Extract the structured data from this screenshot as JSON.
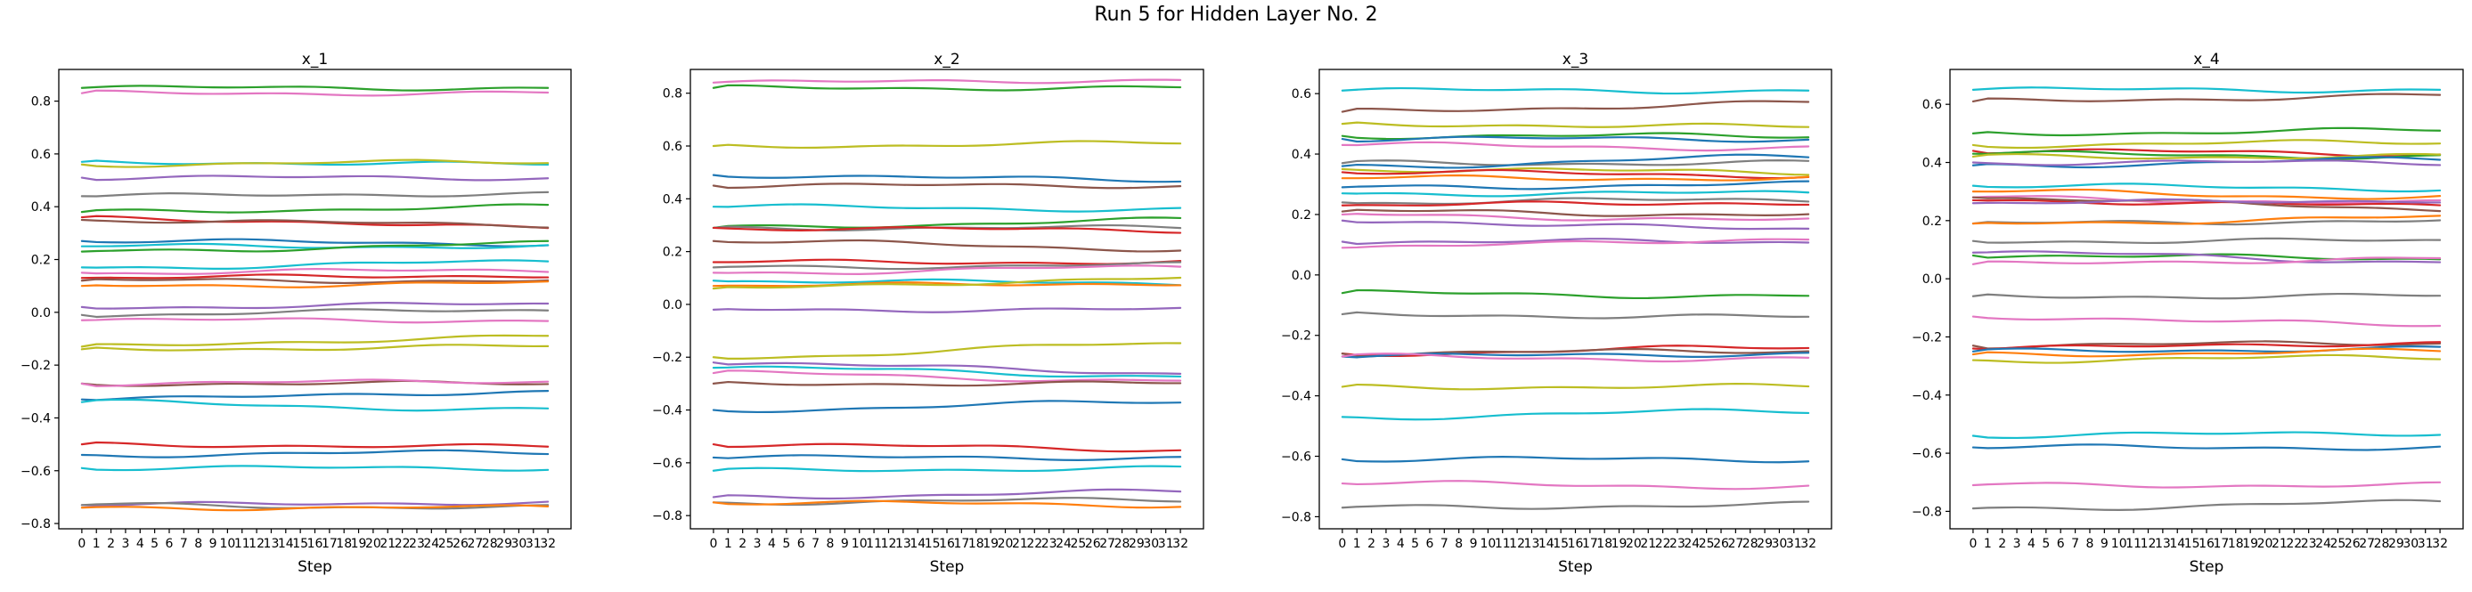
{
  "figure": {
    "title": "Run 5 for Hidden Layer No. 2"
  },
  "chart_data": [
    {
      "type": "line",
      "title": "x_1",
      "xlabel": "Step",
      "ylabel": "",
      "x": [
        0,
        1,
        2,
        3,
        4,
        5,
        6,
        7,
        8,
        9,
        10,
        11,
        12,
        13,
        14,
        15,
        16,
        17,
        18,
        19,
        20,
        21,
        22,
        23,
        24,
        25,
        26,
        27,
        28,
        29,
        30,
        31,
        32
      ],
      "xticks": [
        "0",
        "1",
        "2",
        "3",
        "4",
        "5",
        "6",
        "7",
        "8",
        "9",
        "10",
        "11",
        "12",
        "13",
        "14",
        "15",
        "16",
        "17",
        "18",
        "19",
        "20",
        "21",
        "22",
        "23",
        "24",
        "25",
        "26",
        "27",
        "28",
        "29",
        "30",
        "31",
        "32"
      ],
      "ylim": [
        -0.82,
        0.92
      ],
      "yticks": [
        -0.8,
        -0.6,
        -0.4,
        -0.2,
        0.0,
        0.2,
        0.4,
        0.6,
        0.8
      ],
      "ytick_labels": [
        "−0.8",
        "−0.6",
        "−0.4",
        "−0.2",
        "0.0",
        "0.2",
        "0.4",
        "0.6",
        "0.8"
      ],
      "series": [
        {
          "color": "#2ca02c",
          "start": 0.85,
          "end": 0.85
        },
        {
          "color": "#e377c2",
          "start": 0.83,
          "end": 0.83
        },
        {
          "color": "#17becf",
          "start": 0.57,
          "end": 0.56
        },
        {
          "color": "#bcbd22",
          "start": 0.56,
          "end": 0.57
        },
        {
          "color": "#9467bd",
          "start": 0.51,
          "end": 0.51
        },
        {
          "color": "#7f7f7f",
          "start": 0.44,
          "end": 0.45
        },
        {
          "color": "#2ca02c",
          "start": 0.38,
          "end": 0.4
        },
        {
          "color": "#d62728",
          "start": 0.36,
          "end": 0.32
        },
        {
          "color": "#8c564b",
          "start": 0.35,
          "end": 0.33
        },
        {
          "color": "#1f77b4",
          "start": 0.27,
          "end": 0.26
        },
        {
          "color": "#17becf",
          "start": 0.25,
          "end": 0.25
        },
        {
          "color": "#2ca02c",
          "start": 0.23,
          "end": 0.26
        },
        {
          "color": "#17becf",
          "start": 0.17,
          "end": 0.19
        },
        {
          "color": "#e377c2",
          "start": 0.15,
          "end": 0.16
        },
        {
          "color": "#d62728",
          "start": 0.13,
          "end": 0.14
        },
        {
          "color": "#8c564b",
          "start": 0.12,
          "end": 0.12
        },
        {
          "color": "#ff7f0e",
          "start": 0.1,
          "end": 0.11
        },
        {
          "color": "#9467bd",
          "start": 0.02,
          "end": 0.03
        },
        {
          "color": "#7f7f7f",
          "start": -0.01,
          "end": 0.01
        },
        {
          "color": "#e377c2",
          "start": -0.03,
          "end": -0.03
        },
        {
          "color": "#bcbd22",
          "start": -0.13,
          "end": -0.09
        },
        {
          "color": "#bcbd22",
          "start": -0.14,
          "end": -0.13
        },
        {
          "color": "#8c564b",
          "start": -0.27,
          "end": -0.27
        },
        {
          "color": "#e377c2",
          "start": -0.27,
          "end": -0.26
        },
        {
          "color": "#1f77b4",
          "start": -0.33,
          "end": -0.3
        },
        {
          "color": "#17becf",
          "start": -0.34,
          "end": -0.37
        },
        {
          "color": "#d62728",
          "start": -0.5,
          "end": -0.51
        },
        {
          "color": "#1f77b4",
          "start": -0.54,
          "end": -0.53
        },
        {
          "color": "#17becf",
          "start": -0.59,
          "end": -0.59
        },
        {
          "color": "#9467bd",
          "start": -0.73,
          "end": -0.72
        },
        {
          "color": "#7f7f7f",
          "start": -0.73,
          "end": -0.74
        },
        {
          "color": "#ff7f0e",
          "start": -0.74,
          "end": -0.74
        }
      ]
    },
    {
      "type": "line",
      "title": "x_2",
      "xlabel": "Step",
      "ylabel": "",
      "x": [
        0,
        1,
        2,
        3,
        4,
        5,
        6,
        7,
        8,
        9,
        10,
        11,
        12,
        13,
        14,
        15,
        16,
        17,
        18,
        19,
        20,
        21,
        22,
        23,
        24,
        25,
        26,
        27,
        28,
        29,
        30,
        31,
        32
      ],
      "xticks": [
        "0",
        "1",
        "2",
        "3",
        "4",
        "5",
        "6",
        "7",
        "8",
        "9",
        "10",
        "11",
        "12",
        "13",
        "14",
        "15",
        "16",
        "17",
        "18",
        "19",
        "20",
        "21",
        "22",
        "23",
        "24",
        "25",
        "26",
        "27",
        "28",
        "29",
        "30",
        "31",
        "32"
      ],
      "ylim": [
        -0.85,
        0.89
      ],
      "yticks": [
        -0.8,
        -0.6,
        -0.4,
        -0.2,
        0.0,
        0.2,
        0.4,
        0.6,
        0.8
      ],
      "ytick_labels": [
        "−0.8",
        "−0.6",
        "−0.4",
        "−0.2",
        "0.0",
        "0.2",
        "0.4",
        "0.6",
        "0.8"
      ],
      "series": [
        {
          "color": "#e377c2",
          "start": 0.84,
          "end": 0.85
        },
        {
          "color": "#2ca02c",
          "start": 0.82,
          "end": 0.82
        },
        {
          "color": "#bcbd22",
          "start": 0.6,
          "end": 0.61
        },
        {
          "color": "#1f77b4",
          "start": 0.49,
          "end": 0.47
        },
        {
          "color": "#8c564b",
          "start": 0.45,
          "end": 0.45
        },
        {
          "color": "#17becf",
          "start": 0.37,
          "end": 0.36
        },
        {
          "color": "#2ca02c",
          "start": 0.29,
          "end": 0.32
        },
        {
          "color": "#7f7f7f",
          "start": 0.29,
          "end": 0.29
        },
        {
          "color": "#d62728",
          "start": 0.29,
          "end": 0.28
        },
        {
          "color": "#8c564b",
          "start": 0.24,
          "end": 0.21
        },
        {
          "color": "#d62728",
          "start": 0.16,
          "end": 0.16
        },
        {
          "color": "#7f7f7f",
          "start": 0.14,
          "end": 0.15
        },
        {
          "color": "#e377c2",
          "start": 0.12,
          "end": 0.14
        },
        {
          "color": "#17becf",
          "start": 0.09,
          "end": 0.08
        },
        {
          "color": "#ff7f0e",
          "start": 0.07,
          "end": 0.08
        },
        {
          "color": "#bcbd22",
          "start": 0.06,
          "end": 0.1
        },
        {
          "color": "#9467bd",
          "start": -0.02,
          "end": -0.02
        },
        {
          "color": "#bcbd22",
          "start": -0.2,
          "end": -0.15
        },
        {
          "color": "#9467bd",
          "start": -0.22,
          "end": -0.26
        },
        {
          "color": "#17becf",
          "start": -0.24,
          "end": -0.27
        },
        {
          "color": "#e377c2",
          "start": -0.26,
          "end": -0.29
        },
        {
          "color": "#8c564b",
          "start": -0.3,
          "end": -0.3
        },
        {
          "color": "#1f77b4",
          "start": -0.4,
          "end": -0.37
        },
        {
          "color": "#d62728",
          "start": -0.53,
          "end": -0.55
        },
        {
          "color": "#1f77b4",
          "start": -0.58,
          "end": -0.58
        },
        {
          "color": "#17becf",
          "start": -0.63,
          "end": -0.62
        },
        {
          "color": "#9467bd",
          "start": -0.73,
          "end": -0.71
        },
        {
          "color": "#7f7f7f",
          "start": -0.75,
          "end": -0.74
        },
        {
          "color": "#ff7f0e",
          "start": -0.75,
          "end": -0.76
        }
      ]
    },
    {
      "type": "line",
      "title": "x_3",
      "xlabel": "Step",
      "ylabel": "",
      "x": [
        0,
        1,
        2,
        3,
        4,
        5,
        6,
        7,
        8,
        9,
        10,
        11,
        12,
        13,
        14,
        15,
        16,
        17,
        18,
        19,
        20,
        21,
        22,
        23,
        24,
        25,
        26,
        27,
        28,
        29,
        30,
        31,
        32
      ],
      "xticks": [
        "0",
        "1",
        "2",
        "3",
        "4",
        "5",
        "6",
        "7",
        "8",
        "9",
        "10",
        "11",
        "12",
        "13",
        "14",
        "15",
        "16",
        "17",
        "18",
        "19",
        "20",
        "21",
        "22",
        "23",
        "24",
        "25",
        "26",
        "27",
        "28",
        "29",
        "30",
        "31",
        "32"
      ],
      "ylim": [
        -0.84,
        0.68
      ],
      "yticks": [
        -0.8,
        -0.6,
        -0.4,
        -0.2,
        0.0,
        0.2,
        0.4,
        0.6
      ],
      "ytick_labels": [
        "−0.8",
        "−0.6",
        "−0.4",
        "−0.2",
        "0.0",
        "0.2",
        "0.4",
        "0.6"
      ],
      "series": [
        {
          "color": "#17becf",
          "start": 0.61,
          "end": 0.61
        },
        {
          "color": "#8c564b",
          "start": 0.54,
          "end": 0.57
        },
        {
          "color": "#bcbd22",
          "start": 0.5,
          "end": 0.49
        },
        {
          "color": "#2ca02c",
          "start": 0.46,
          "end": 0.46
        },
        {
          "color": "#1f77b4",
          "start": 0.45,
          "end": 0.45
        },
        {
          "color": "#e377c2",
          "start": 0.43,
          "end": 0.42
        },
        {
          "color": "#7f7f7f",
          "start": 0.37,
          "end": 0.37
        },
        {
          "color": "#1f77b4",
          "start": 0.36,
          "end": 0.39
        },
        {
          "color": "#bcbd22",
          "start": 0.35,
          "end": 0.34
        },
        {
          "color": "#d62728",
          "start": 0.34,
          "end": 0.33
        },
        {
          "color": "#ff7f0e",
          "start": 0.32,
          "end": 0.32
        },
        {
          "color": "#1f77b4",
          "start": 0.29,
          "end": 0.3
        },
        {
          "color": "#17becf",
          "start": 0.27,
          "end": 0.27
        },
        {
          "color": "#7f7f7f",
          "start": 0.24,
          "end": 0.25
        },
        {
          "color": "#d62728",
          "start": 0.23,
          "end": 0.24
        },
        {
          "color": "#8c564b",
          "start": 0.21,
          "end": 0.2
        },
        {
          "color": "#e377c2",
          "start": 0.2,
          "end": 0.18
        },
        {
          "color": "#9467bd",
          "start": 0.18,
          "end": 0.15
        },
        {
          "color": "#9467bd",
          "start": 0.11,
          "end": 0.11
        },
        {
          "color": "#e377c2",
          "start": 0.09,
          "end": 0.12
        },
        {
          "color": "#2ca02c",
          "start": -0.06,
          "end": -0.07
        },
        {
          "color": "#7f7f7f",
          "start": -0.13,
          "end": -0.14
        },
        {
          "color": "#d62728",
          "start": -0.26,
          "end": -0.24
        },
        {
          "color": "#8c564b",
          "start": -0.26,
          "end": -0.25
        },
        {
          "color": "#1f77b4",
          "start": -0.27,
          "end": -0.26
        },
        {
          "color": "#e377c2",
          "start": -0.27,
          "end": -0.28
        },
        {
          "color": "#bcbd22",
          "start": -0.37,
          "end": -0.37
        },
        {
          "color": "#17becf",
          "start": -0.47,
          "end": -0.45
        },
        {
          "color": "#1f77b4",
          "start": -0.61,
          "end": -0.61
        },
        {
          "color": "#e377c2",
          "start": -0.69,
          "end": -0.7
        },
        {
          "color": "#7f7f7f",
          "start": -0.77,
          "end": -0.76
        }
      ]
    },
    {
      "type": "line",
      "title": "x_4",
      "xlabel": "Step",
      "ylabel": "",
      "x": [
        0,
        1,
        2,
        3,
        4,
        5,
        6,
        7,
        8,
        9,
        10,
        11,
        12,
        13,
        14,
        15,
        16,
        17,
        18,
        19,
        20,
        21,
        22,
        23,
        24,
        25,
        26,
        27,
        28,
        29,
        30,
        31,
        32
      ],
      "xticks": [
        "0",
        "1",
        "2",
        "3",
        "4",
        "5",
        "6",
        "7",
        "8",
        "9",
        "10",
        "11",
        "12",
        "13",
        "14",
        "15",
        "16",
        "17",
        "18",
        "19",
        "20",
        "21",
        "22",
        "23",
        "24",
        "25",
        "26",
        "27",
        "28",
        "29",
        "30",
        "31",
        "32"
      ],
      "ylim": [
        -0.86,
        0.72
      ],
      "yticks": [
        -0.8,
        -0.6,
        -0.4,
        -0.2,
        0.0,
        0.2,
        0.4,
        0.6
      ],
      "ytick_labels": [
        "−0.8",
        "−0.6",
        "−0.4",
        "−0.2",
        "0.0",
        "0.2",
        "0.4",
        "0.6"
      ],
      "series": [
        {
          "color": "#17becf",
          "start": 0.65,
          "end": 0.65
        },
        {
          "color": "#8c564b",
          "start": 0.61,
          "end": 0.63
        },
        {
          "color": "#2ca02c",
          "start": 0.5,
          "end": 0.51
        },
        {
          "color": "#bcbd22",
          "start": 0.46,
          "end": 0.47
        },
        {
          "color": "#d62728",
          "start": 0.44,
          "end": 0.43
        },
        {
          "color": "#2ca02c",
          "start": 0.43,
          "end": 0.42
        },
        {
          "color": "#bcbd22",
          "start": 0.42,
          "end": 0.42
        },
        {
          "color": "#1f77b4",
          "start": 0.39,
          "end": 0.41
        },
        {
          "color": "#9467bd",
          "start": 0.4,
          "end": 0.4
        },
        {
          "color": "#17becf",
          "start": 0.32,
          "end": 0.31
        },
        {
          "color": "#ff7f0e",
          "start": 0.3,
          "end": 0.28
        },
        {
          "color": "#e377c2",
          "start": 0.28,
          "end": 0.26
        },
        {
          "color": "#d62728",
          "start": 0.27,
          "end": 0.25
        },
        {
          "color": "#8c564b",
          "start": 0.28,
          "end": 0.24
        },
        {
          "color": "#9467bd",
          "start": 0.26,
          "end": 0.27
        },
        {
          "color": "#7f7f7f",
          "start": 0.19,
          "end": 0.2
        },
        {
          "color": "#ff7f0e",
          "start": 0.19,
          "end": 0.21
        },
        {
          "color": "#7f7f7f",
          "start": 0.13,
          "end": 0.13
        },
        {
          "color": "#2ca02c",
          "start": 0.08,
          "end": 0.07
        },
        {
          "color": "#9467bd",
          "start": 0.09,
          "end": 0.06
        },
        {
          "color": "#e377c2",
          "start": 0.05,
          "end": 0.07
        },
        {
          "color": "#7f7f7f",
          "start": -0.06,
          "end": -0.06
        },
        {
          "color": "#e377c2",
          "start": -0.13,
          "end": -0.16
        },
        {
          "color": "#8c564b",
          "start": -0.23,
          "end": -0.22
        },
        {
          "color": "#d62728",
          "start": -0.24,
          "end": -0.22
        },
        {
          "color": "#1f77b4",
          "start": -0.25,
          "end": -0.24
        },
        {
          "color": "#ff7f0e",
          "start": -0.26,
          "end": -0.25
        },
        {
          "color": "#bcbd22",
          "start": -0.28,
          "end": -0.27
        },
        {
          "color": "#17becf",
          "start": -0.54,
          "end": -0.53
        },
        {
          "color": "#1f77b4",
          "start": -0.58,
          "end": -0.58
        },
        {
          "color": "#e377c2",
          "start": -0.71,
          "end": -0.71
        },
        {
          "color": "#7f7f7f",
          "start": -0.79,
          "end": -0.77
        }
      ]
    }
  ]
}
